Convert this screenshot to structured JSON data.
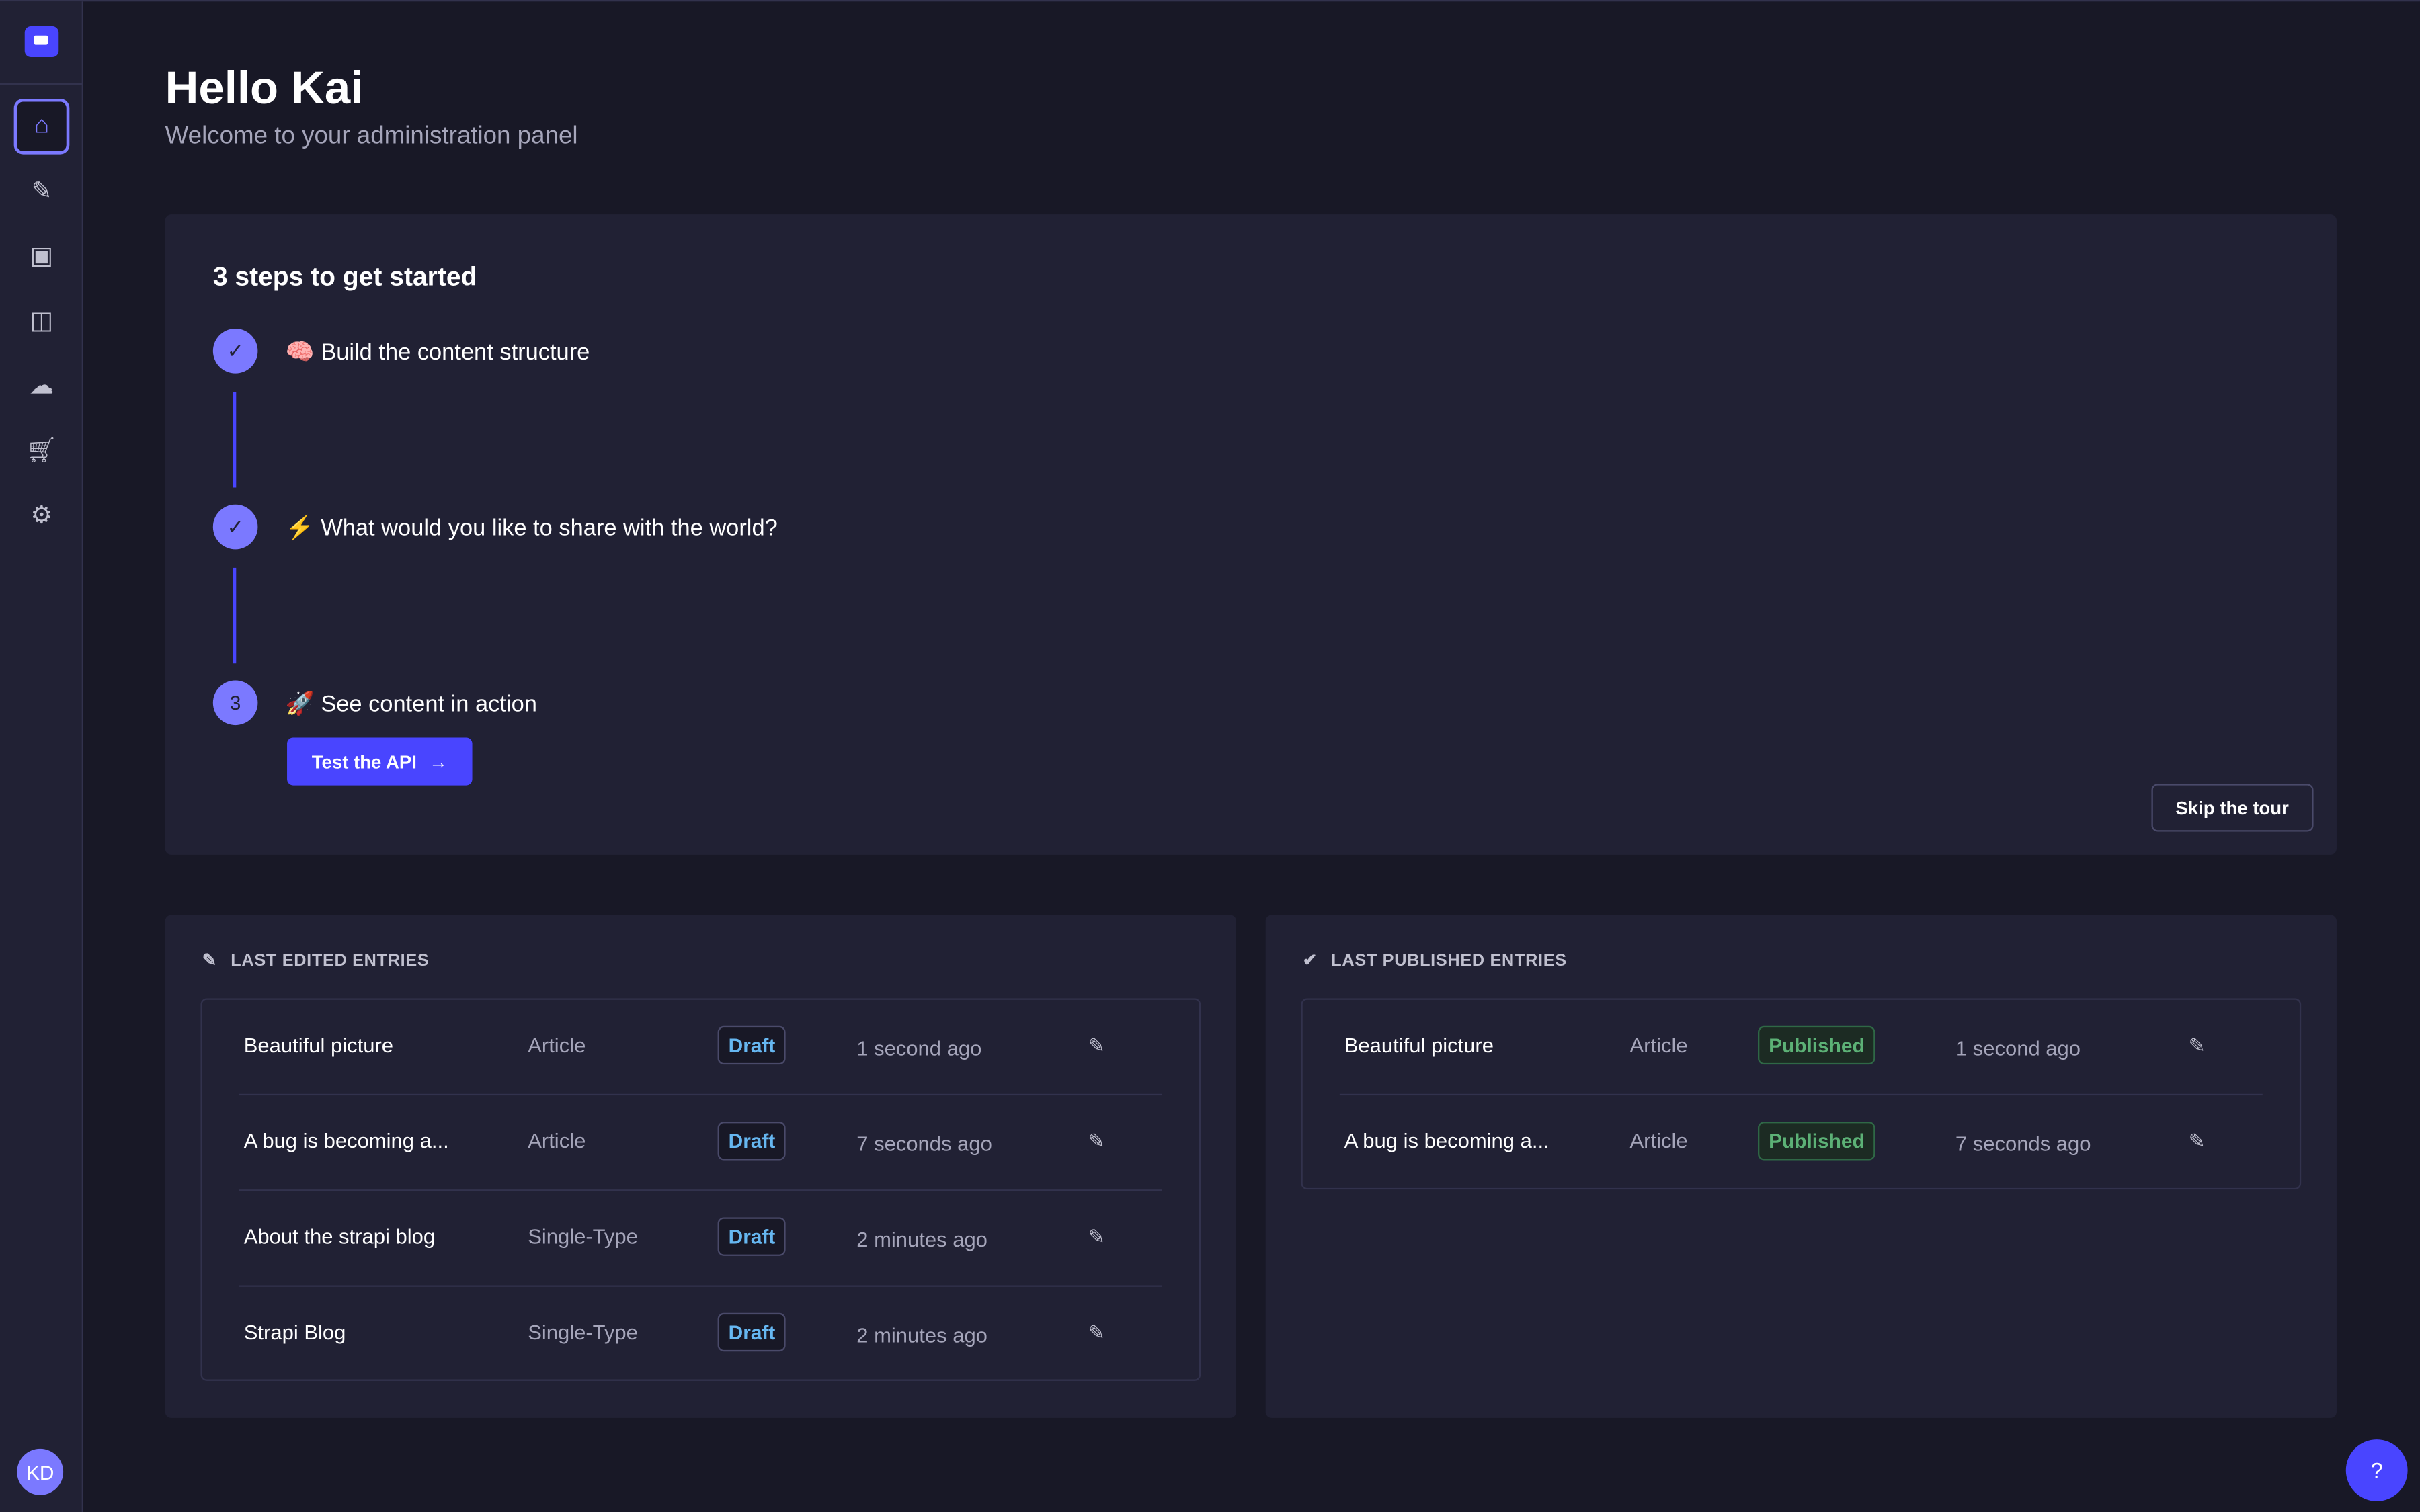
{
  "sidebar": {
    "items": [
      {
        "icon": "home-icon"
      },
      {
        "icon": "feather-icon"
      },
      {
        "icon": "media-icon"
      },
      {
        "icon": "layout-icon"
      },
      {
        "icon": "cloud-icon"
      },
      {
        "icon": "cart-icon"
      },
      {
        "icon": "gear-icon"
      }
    ],
    "avatar": "KD"
  },
  "header": {
    "title": "Hello Kai",
    "subtitle": "Welcome to your administration panel"
  },
  "steps": {
    "title": "3 steps to get started",
    "items": [
      {
        "marker": "✓",
        "emoji": "🧠",
        "label": "Build the content structure",
        "done": true
      },
      {
        "marker": "✓",
        "emoji": "⚡",
        "label": "What would you like to share with the world?",
        "done": true
      },
      {
        "marker": "3",
        "emoji": "🚀",
        "label": "See content in action",
        "done": false
      }
    ],
    "cta": "Test the API",
    "skip": "Skip the tour"
  },
  "last_edited": {
    "title": "LAST EDITED ENTRIES",
    "rows": [
      {
        "name": "Beautiful picture",
        "type": "Article",
        "status": "Draft",
        "time": "1 second ago"
      },
      {
        "name": "A bug is becoming a...",
        "type": "Article",
        "status": "Draft",
        "time": "7 seconds ago"
      },
      {
        "name": "About the strapi blog",
        "type": "Single-Type",
        "status": "Draft",
        "time": "2 minutes ago"
      },
      {
        "name": "Strapi Blog",
        "type": "Single-Type",
        "status": "Draft",
        "time": "2 minutes ago"
      }
    ]
  },
  "last_published": {
    "title": "LAST PUBLISHED ENTRIES",
    "rows": [
      {
        "name": "Beautiful picture",
        "type": "Article",
        "status": "Published",
        "time": "1 second ago"
      },
      {
        "name": "A bug is becoming a...",
        "type": "Article",
        "status": "Published",
        "time": "7 seconds ago"
      }
    ]
  },
  "colors": {
    "primary": "#4945ff",
    "draft": "#66b7f1",
    "published": "#5cb176"
  }
}
